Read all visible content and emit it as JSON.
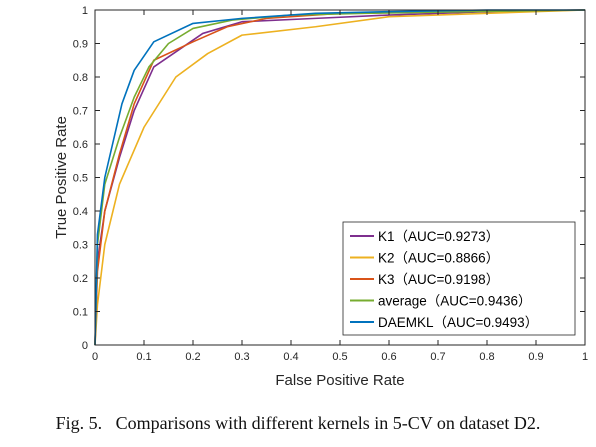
{
  "caption": "Fig. 5.   Comparisons with different kernels in 5-CV on dataset D2.",
  "chart_data": {
    "type": "line",
    "xlabel": "False Positive Rate",
    "ylabel": "True Positive Rate",
    "xlim": [
      0,
      1
    ],
    "ylim": [
      0,
      1
    ],
    "xticks": [
      "0",
      "0.1",
      "0.2",
      "0.3",
      "0.4",
      "0.5",
      "0.6",
      "0.7",
      "0.8",
      "0.9",
      "1"
    ],
    "yticks": [
      "0",
      "0.1",
      "0.2",
      "0.3",
      "0.4",
      "0.5",
      "0.6",
      "0.7",
      "0.8",
      "0.9",
      "1"
    ],
    "grid": false,
    "legend_position": "lower-right",
    "series": [
      {
        "name": "K1（AUC=0.9273）",
        "color": "#7E2F8E",
        "x": [
          0,
          0.005,
          0.02,
          0.05,
          0.08,
          0.12,
          0.17,
          0.22,
          0.3,
          0.45,
          0.6,
          0.8,
          1.0
        ],
        "y": [
          0,
          0.25,
          0.4,
          0.56,
          0.7,
          0.83,
          0.88,
          0.93,
          0.965,
          0.975,
          0.985,
          0.995,
          1.0
        ]
      },
      {
        "name": "K2（AUC=0.8866）",
        "color": "#EDB120",
        "x": [
          0,
          0.005,
          0.02,
          0.05,
          0.1,
          0.165,
          0.23,
          0.3,
          0.45,
          0.6,
          0.8,
          1.0
        ],
        "y": [
          0,
          0.12,
          0.3,
          0.48,
          0.65,
          0.8,
          0.87,
          0.925,
          0.95,
          0.98,
          0.99,
          1.0
        ]
      },
      {
        "name": "K3（AUC=0.9198）",
        "color": "#D95319",
        "x": [
          0,
          0.005,
          0.02,
          0.05,
          0.08,
          0.12,
          0.2,
          0.27,
          0.35,
          0.5,
          0.7,
          1.0
        ],
        "y": [
          0,
          0.22,
          0.4,
          0.57,
          0.72,
          0.85,
          0.905,
          0.95,
          0.975,
          0.99,
          0.995,
          1.0
        ]
      },
      {
        "name": "average（AUC=0.9436）",
        "color": "#77AC30",
        "x": [
          0,
          0.005,
          0.02,
          0.05,
          0.08,
          0.11,
          0.15,
          0.2,
          0.28,
          0.4,
          0.55,
          0.75,
          1.0
        ],
        "y": [
          0,
          0.3,
          0.48,
          0.62,
          0.74,
          0.83,
          0.9,
          0.945,
          0.97,
          0.985,
          0.99,
          0.995,
          1.0
        ]
      },
      {
        "name": "DAEMKL（AUC=0.9493）",
        "color": "#0072BD",
        "x": [
          0,
          0.005,
          0.02,
          0.055,
          0.08,
          0.12,
          0.2,
          0.3,
          0.45,
          0.6,
          0.8,
          1.0
        ],
        "y": [
          0,
          0.33,
          0.5,
          0.72,
          0.82,
          0.905,
          0.96,
          0.975,
          0.99,
          0.995,
          1.0,
          1.0
        ]
      }
    ]
  }
}
